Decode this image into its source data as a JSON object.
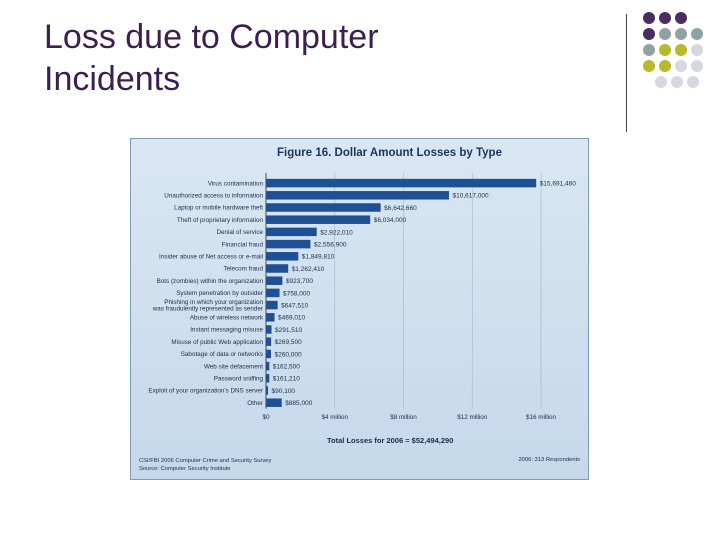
{
  "slide": {
    "title_line1": "Loss due to Computer",
    "title_line2": "Incidents"
  },
  "decor": {
    "colors": [
      "#4a2c5e",
      "#8fa3a6",
      "#b5b92a",
      "#d7d7e0"
    ],
    "rows": [
      [
        "#4a2c5e",
        "#4a2c5e",
        "#4a2c5e"
      ],
      [
        "#4a2c5e",
        "#8fa3a6",
        "#8fa3a6",
        "#8fa3a6"
      ],
      [
        "#8fa3a6",
        "#b5b92a",
        "#b5b92a",
        "#d7d7e0"
      ],
      [
        "#b5b92a",
        "#b5b92a",
        "#d7d7e0",
        "#d7d7e0"
      ],
      [
        "#d7d7e0",
        "#d7d7e0",
        "#d7d7e0"
      ]
    ]
  },
  "chart_data": {
    "type": "bar",
    "orientation": "horizontal",
    "title": "Figure 16. Dollar Amount Losses by Type",
    "categories": [
      "Virus contamination",
      "Unauthorized access to information",
      "Laptop or mobile hardware theft",
      "Theft of proprietary information",
      "Denial of service",
      "Financial fraud",
      "Insider abuse of Net access or e-mail",
      "Telecom fraud",
      "Bots (zombies) within the organization",
      "System penetration by outsider",
      "Phishing in which your organization\nwas fraudulently represented as sender",
      "Abuse of wireless network",
      "Instant messaging misuse",
      "Misuse of public Web application",
      "Sabotage of data or networks",
      "Web site defacement",
      "Password sniffing",
      "Exploit of your organization's DNS server",
      "Other"
    ],
    "values": [
      15691460,
      10617000,
      6642660,
      6034000,
      2922010,
      2556900,
      1849810,
      1262410,
      923700,
      758000,
      647510,
      469010,
      291510,
      269500,
      260000,
      162500,
      161210,
      90100,
      885000
    ],
    "value_labels": [
      "$15,691,460",
      "$10,617,000",
      "$6,642,660",
      "$6,034,000",
      "$2,922,010",
      "$2,556,900",
      "$1,849,810",
      "$1,262,410",
      "$923,700",
      "$758,000",
      "$647,510",
      "$469,010",
      "$291,510",
      "$269,500",
      "$260,000",
      "$162,500",
      "$161,210",
      "$90,100",
      "$885,000"
    ],
    "xlim": [
      0,
      16000000
    ],
    "xticks": [
      0,
      4000000,
      8000000,
      12000000,
      16000000
    ],
    "xtick_labels": [
      "$0",
      "$4 million",
      "$8 million",
      "$12 million",
      "$16 million"
    ],
    "bar_color": "#1f4f95",
    "total_label": "Total Losses for 2006 = $52,494,290",
    "source_line1": "CSI/FBI 2006 Computer Crime and Security Survey",
    "source_line2": "Source: Computer Security Institute",
    "respondents": "2006: 313 Respondents"
  }
}
